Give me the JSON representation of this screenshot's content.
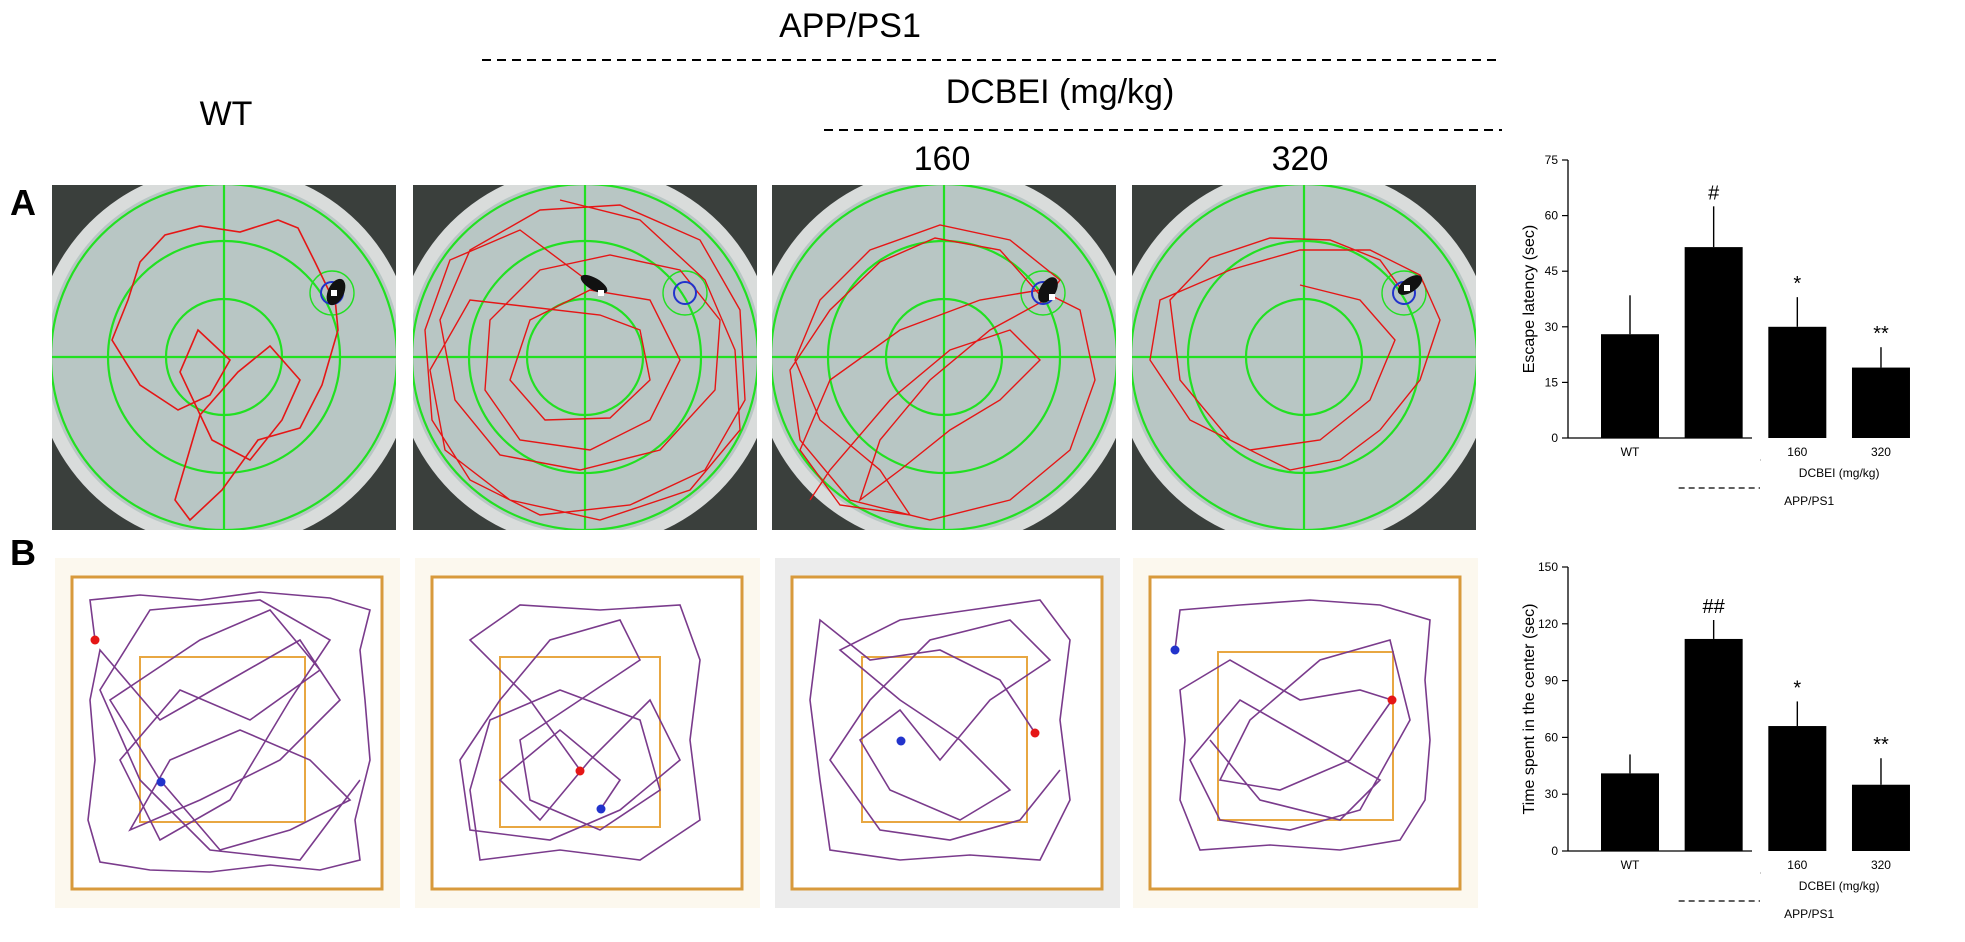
{
  "header": {
    "group_label": "APP/PS1",
    "wt_label": "WT",
    "treatment_label": "DCBEI (mg/kg)",
    "dose_labels": [
      "160",
      "320"
    ]
  },
  "panels": {
    "a_label": "A",
    "b_label": "B"
  },
  "chart_data": [
    {
      "type": "bar",
      "panel": "A",
      "ylabel": "Escape latency (sec)",
      "ylim": [
        0,
        75
      ],
      "yticks": [
        0,
        15,
        30,
        45,
        60,
        75
      ],
      "categories": [
        "WT",
        "",
        "160",
        "320"
      ],
      "values": [
        28,
        51.5,
        30,
        19
      ],
      "errors": [
        10.5,
        11,
        8,
        5.5
      ],
      "significance": [
        "",
        "#",
        "*",
        "**"
      ],
      "subgroup_label": "DCBEI (mg/kg)",
      "group_label": "APP/PS1",
      "colors": {
        "bar": "#000000"
      }
    },
    {
      "type": "bar",
      "panel": "B",
      "ylabel": "Time spent in the center (sec)",
      "ylim": [
        0,
        150
      ],
      "yticks": [
        0,
        30,
        60,
        90,
        120,
        150
      ],
      "categories": [
        "WT",
        "",
        "160",
        "320"
      ],
      "values": [
        41,
        112,
        66,
        35
      ],
      "errors": [
        10,
        10,
        13,
        14
      ],
      "significance": [
        "",
        "##",
        "*",
        "**"
      ],
      "subgroup_label": "DCBEI (mg/kg)",
      "group_label": "APP/PS1",
      "colors": {
        "bar": "#000000"
      }
    }
  ],
  "colors": {
    "maze_grid": "#22e022",
    "swim_path": "#e51616",
    "platform": "#2233cc",
    "field_border": "#d89a3c",
    "field_track": "#7a3b8c"
  }
}
